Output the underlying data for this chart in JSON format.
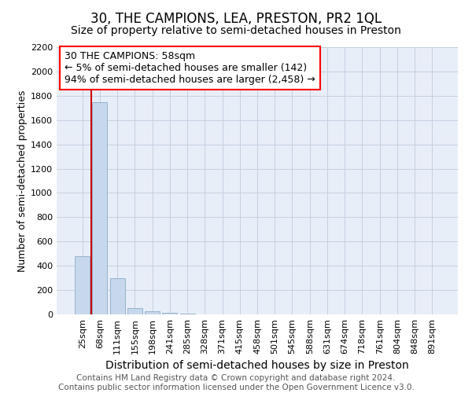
{
  "title": "30, THE CAMPIONS, LEA, PRESTON, PR2 1QL",
  "subtitle": "Size of property relative to semi-detached houses in Preston",
  "xlabel": "Distribution of semi-detached houses by size in Preston",
  "ylabel": "Number of semi-detached properties",
  "categories": [
    "25sqm",
    "68sqm",
    "111sqm",
    "155sqm",
    "198sqm",
    "241sqm",
    "285sqm",
    "328sqm",
    "371sqm",
    "415sqm",
    "458sqm",
    "501sqm",
    "545sqm",
    "588sqm",
    "631sqm",
    "674sqm",
    "718sqm",
    "761sqm",
    "804sqm",
    "848sqm",
    "891sqm"
  ],
  "values": [
    480,
    1750,
    300,
    50,
    25,
    15,
    5,
    0,
    0,
    0,
    0,
    0,
    0,
    0,
    0,
    0,
    0,
    0,
    0,
    0,
    0
  ],
  "red_line_x": 0.5,
  "bar_color": "#c8d8ec",
  "bar_edge_color": "#8aaac8",
  "red_line_color": "#cc0000",
  "ylim": [
    0,
    2200
  ],
  "yticks": [
    0,
    200,
    400,
    600,
    800,
    1000,
    1200,
    1400,
    1600,
    1800,
    2000,
    2200
  ],
  "annotation_text": "30 THE CAMPIONS: 58sqm\n← 5% of semi-detached houses are smaller (142)\n94% of semi-detached houses are larger (2,458) →",
  "footer_line1": "Contains HM Land Registry data © Crown copyright and database right 2024.",
  "footer_line2": "Contains public sector information licensed under the Open Government Licence v3.0.",
  "plot_bg_color": "#e8eef8",
  "grid_color": "#c5d0e0",
  "title_fontsize": 12,
  "subtitle_fontsize": 10,
  "tick_fontsize": 8,
  "ylabel_fontsize": 9,
  "xlabel_fontsize": 10,
  "footer_fontsize": 7.5,
  "annot_fontsize": 9
}
